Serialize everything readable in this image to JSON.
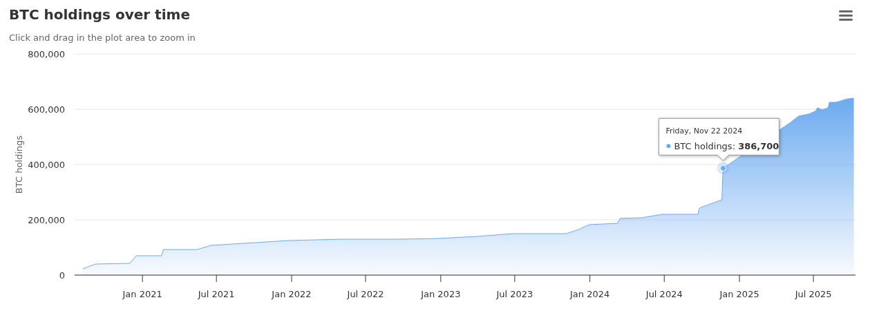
{
  "chart_data": {
    "type": "area",
    "title": "BTC holdings over time",
    "subtitle": "Click and drag in the plot area to zoom in",
    "ylabel": "BTC holdings",
    "x": [
      "2020-08-08",
      "2020-09-08",
      "2020-12-01",
      "2020-12-17",
      "2021-02-17",
      "2021-02-21",
      "2021-05-15",
      "2021-06-18",
      "2021-12-25",
      "2022-05-08",
      "2022-09-24",
      "2022-12-24",
      "2023-04-01",
      "2023-06-28",
      "2023-11-04",
      "2023-12-05",
      "2023-12-30",
      "2024-03-09",
      "2024-03-15",
      "2024-05-08",
      "2024-06-26",
      "2024-09-22",
      "2024-09-24",
      "2024-09-29",
      "2024-11-19",
      "2024-11-22",
      "2024-12-25",
      "2025-02-22",
      "2025-03-27",
      "2025-05-04",
      "2025-05-26",
      "2025-06-21",
      "2025-07-06",
      "2025-07-11",
      "2025-07-23",
      "2025-08-06",
      "2025-08-09",
      "2025-08-26",
      "2025-09-21",
      "2025-10-08"
    ],
    "series": [
      {
        "color": "#6caaf0",
        "values": [
          22500,
          40000,
          42500,
          70000,
          70000,
          92500,
          92500,
          107500,
          125000,
          130000,
          130000,
          132500,
          140000,
          150000,
          150000,
          165000,
          182500,
          187500,
          205000,
          207500,
          220000,
          220000,
          240000,
          245000,
          272500,
          386700,
          null,
          null,
          null,
          550000,
          575000,
          583000,
          593000,
          605000,
          598000,
          605000,
          625000,
          625000,
          637000,
          640000
        ]
      }
    ],
    "xlim": [
      "2020-07-19",
      "2025-10-12"
    ],
    "xticks": [
      {
        "value": "2021-01",
        "label": "Jan 2021"
      },
      {
        "value": "2021-07",
        "label": "Jul 2021"
      },
      {
        "value": "2022-01",
        "label": "Jan 2022"
      },
      {
        "value": "2022-07",
        "label": "Jul 2022"
      },
      {
        "value": "2023-01",
        "label": "Jan 2023"
      },
      {
        "value": "2023-07",
        "label": "Jul 2023"
      },
      {
        "value": "2024-01",
        "label": "Jan 2024"
      },
      {
        "value": "2024-07",
        "label": "Jul 2024"
      },
      {
        "value": "2025-01",
        "label": "Jan 2025"
      },
      {
        "value": "2025-07",
        "label": "Jul 2025"
      }
    ],
    "ylim": [
      0,
      800000
    ],
    "yticks": [
      0,
      {
        "value": 200000,
        "label": "200,000"
      },
      {
        "value": 400000,
        "label": "400,000"
      },
      {
        "value": 600000,
        "label": "600,000"
      },
      {
        "value": 800000,
        "label": "800,000"
      }
    ],
    "grid": "y",
    "marker": "none",
    "annotations": [
      {
        "text": "Friday, Nov 22 2024\nBTC holdings: 386,700",
        "x": "2024-11-22",
        "y": 386700
      }
    ]
  }
}
